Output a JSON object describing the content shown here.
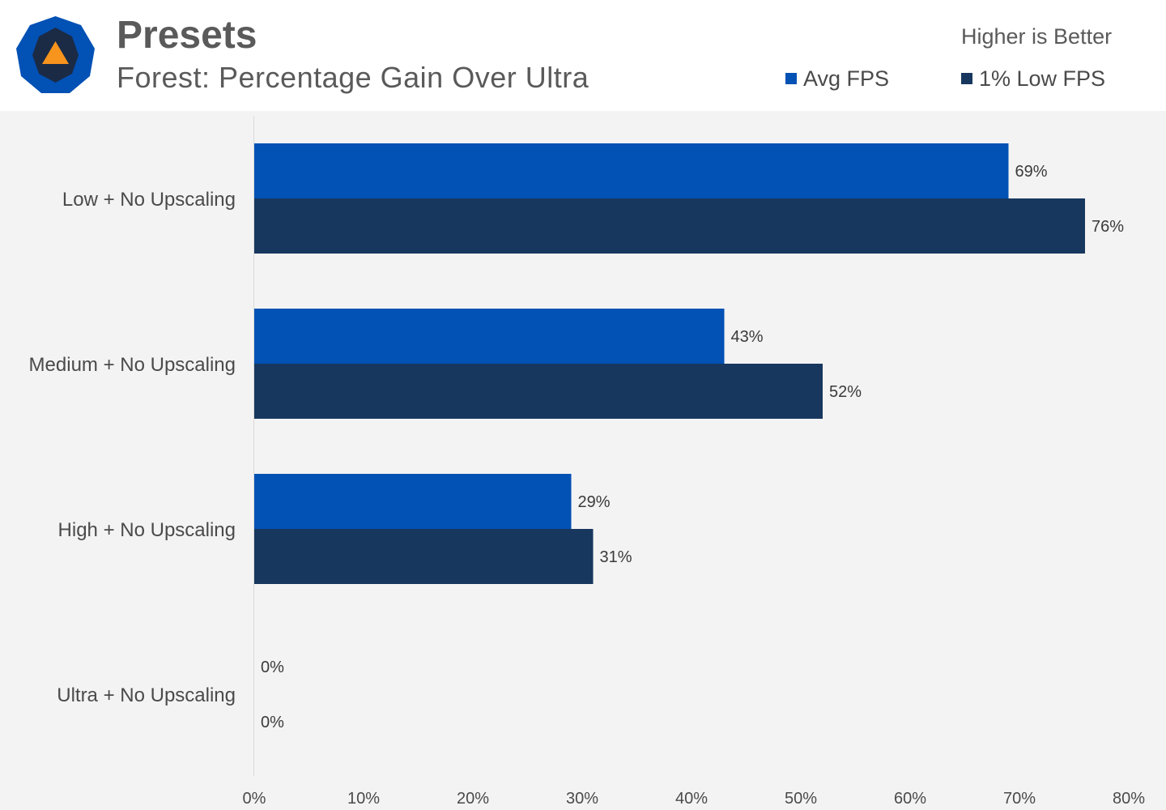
{
  "header": {
    "title": "Presets",
    "subtitle": "Forest: Percentage Gain Over Ultra",
    "note": "Higher is Better",
    "logo_icon": "hexagon-warning-logo-icon"
  },
  "colors": {
    "avg": "#0251b5",
    "low": "#17375e",
    "background": "#f3f3f3",
    "header_bg": "#ffffff",
    "text": "#4a4a4a"
  },
  "chart_data": {
    "type": "bar",
    "orientation": "horizontal",
    "categories": [
      "Low + No Upscaling",
      "Medium + No Upscaling",
      "High + No Upscaling",
      "Ultra + No Upscaling"
    ],
    "series": [
      {
        "name": "Avg FPS",
        "values": [
          69,
          43,
          29,
          0
        ]
      },
      {
        "name": "1% Low FPS",
        "values": [
          76,
          52,
          31,
          0
        ]
      }
    ],
    "value_suffix": "%",
    "xlim": [
      0,
      80
    ],
    "xticks": [
      0,
      10,
      20,
      30,
      40,
      50,
      60,
      70,
      80
    ],
    "xtick_labels": [
      "0%",
      "10%",
      "20%",
      "30%",
      "40%",
      "50%",
      "60%",
      "70%",
      "80%"
    ],
    "grid": false,
    "legend_position": "top-right",
    "data_labels": true
  }
}
